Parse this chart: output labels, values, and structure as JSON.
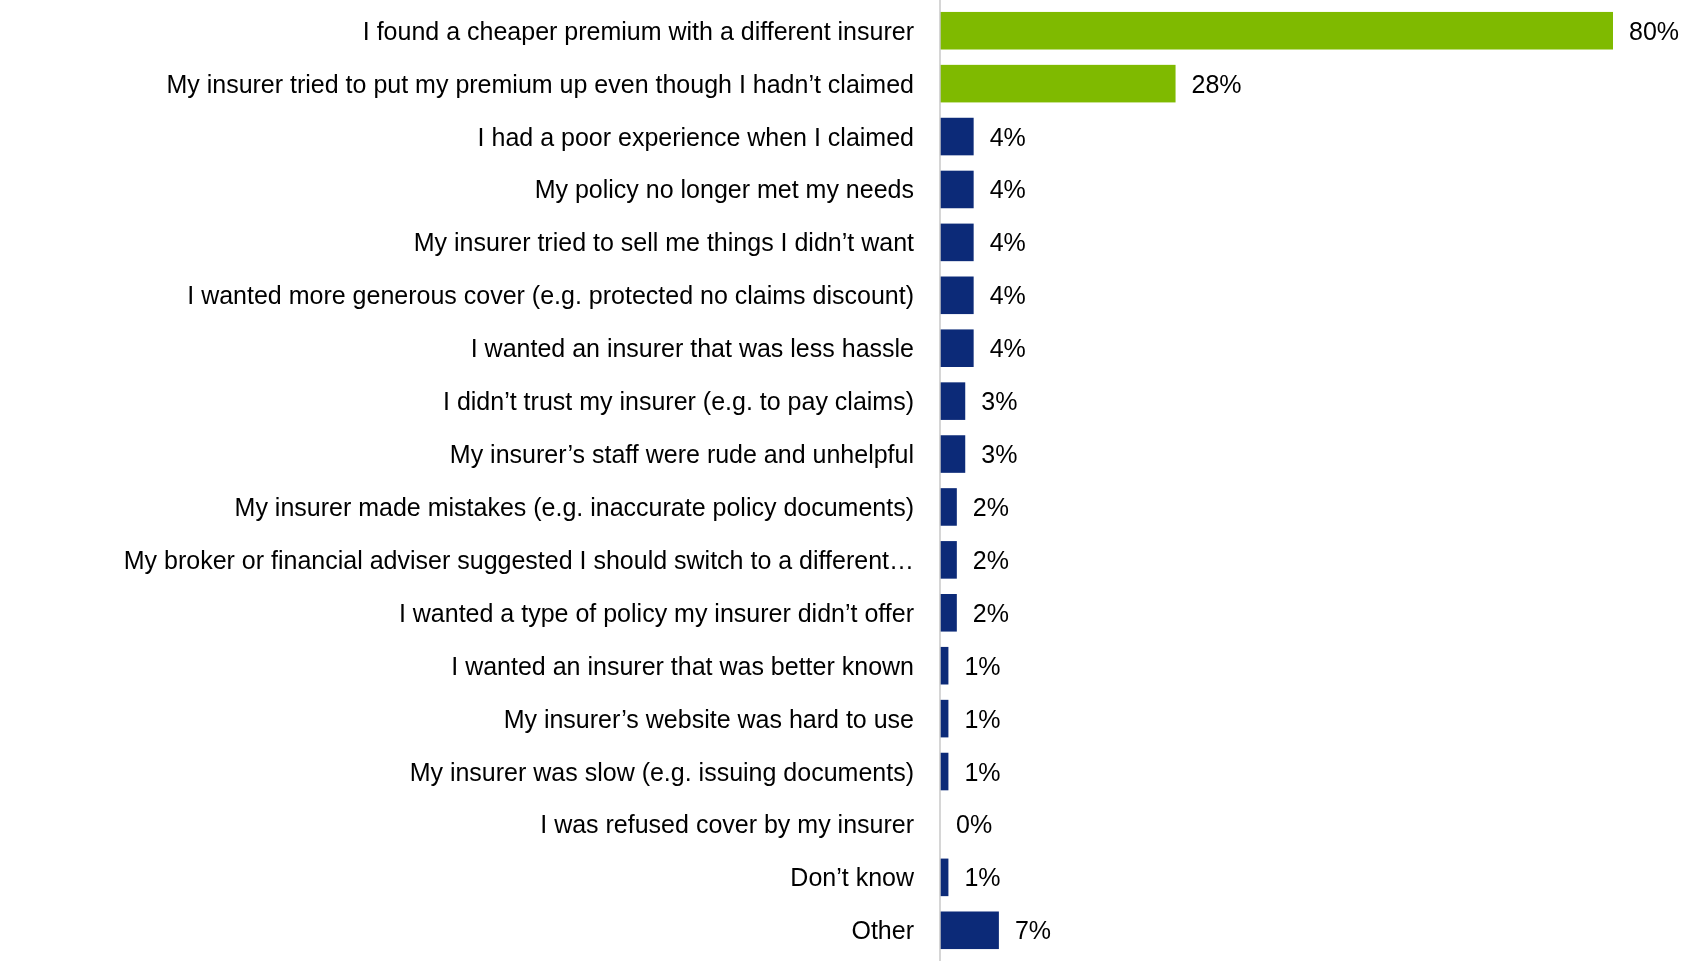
{
  "chart_data": {
    "type": "bar",
    "orientation": "horizontal",
    "categories": [
      "I found a cheaper premium with a different insurer",
      "My insurer tried to put my premium up even though I hadn’t claimed",
      "I had a poor experience when I claimed",
      "My policy no longer met my needs",
      "My insurer tried to sell me things I didn’t want",
      "I wanted more generous cover (e.g. protected no claims discount)",
      "I wanted an insurer that was less hassle",
      "I didn’t trust my insurer (e.g. to pay claims)",
      "My insurer’s staff were rude and unhelpful",
      "My insurer made mistakes (e.g. inaccurate policy documents)",
      "My broker or financial adviser suggested I should switch to a different…",
      "I wanted a type of policy my insurer didn’t offer",
      "I wanted an insurer that was better known",
      "My insurer’s website was hard to use",
      "My insurer was slow (e.g. issuing documents)",
      "I was refused cover by my insurer",
      "Don’t know",
      "Other"
    ],
    "values": [
      80,
      28,
      4,
      4,
      4,
      4,
      4,
      3,
      3,
      2,
      2,
      2,
      1,
      1,
      1,
      0,
      1,
      7
    ],
    "value_labels": [
      "80%",
      "28%",
      "4%",
      "4%",
      "4%",
      "4%",
      "4%",
      "3%",
      "3%",
      "2%",
      "2%",
      "2%",
      "1%",
      "1%",
      "1%",
      "0%",
      "1%",
      "7%"
    ],
    "colors": [
      "#7fba00",
      "#7fba00",
      "#0c2a78",
      "#0c2a78",
      "#0c2a78",
      "#0c2a78",
      "#0c2a78",
      "#0c2a78",
      "#0c2a78",
      "#0c2a78",
      "#0c2a78",
      "#0c2a78",
      "#0c2a78",
      "#0c2a78",
      "#0c2a78",
      "#0c2a78",
      "#0c2a78",
      "#0c2a78"
    ]
  }
}
